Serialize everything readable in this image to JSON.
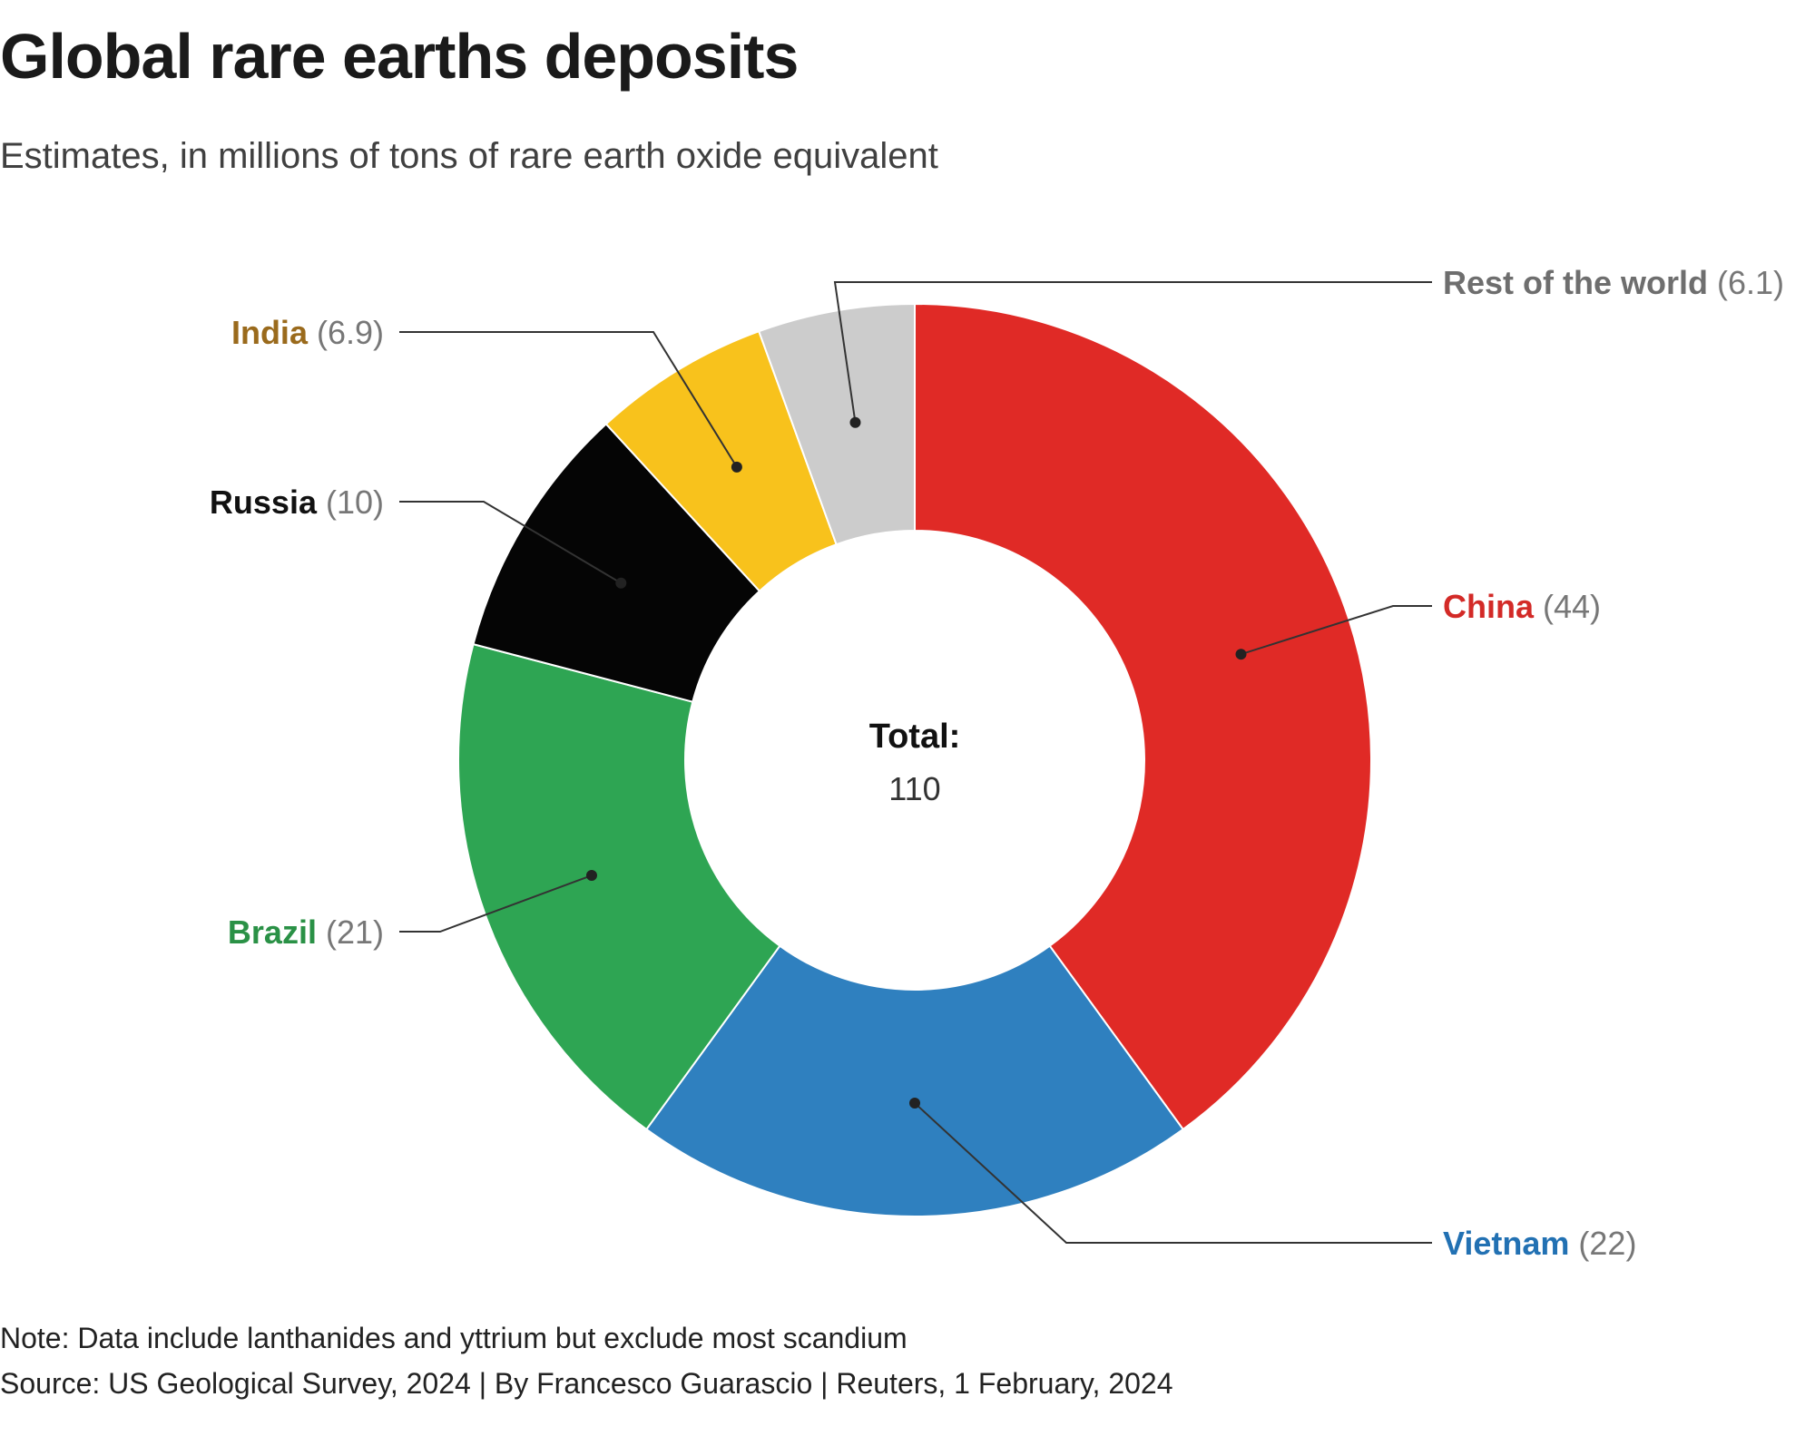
{
  "title": "Global rare earths deposits",
  "subtitle": "Estimates, in millions of tons of rare earth oxide equivalent",
  "total_label": "Total:",
  "total_value": "110",
  "note": "Note: Data include lanthanides and yttrium but exclude most scandium",
  "source": "Source: US Geological Survey, 2024 | By Francesco Guarascio | Reuters, 1 February, 2024",
  "chart_data": {
    "type": "pie",
    "donut": true,
    "title": "Global rare earths deposits",
    "subtitle": "Estimates, in millions of tons of rare earth oxide equivalent",
    "total": 110,
    "slices": [
      {
        "label": "China",
        "value": 44,
        "display": "(44)",
        "color": "#e02a26",
        "label_color": "#d32a27"
      },
      {
        "label": "Vietnam",
        "value": 22,
        "display": "(22)",
        "color": "#2f80bf",
        "label_color": "#2271b3"
      },
      {
        "label": "Brazil",
        "value": 21,
        "display": "(21)",
        "color": "#2ea553",
        "label_color": "#2a9146"
      },
      {
        "label": "Russia",
        "value": 10,
        "display": "(10)",
        "color": "#050505",
        "label_color": "#111111"
      },
      {
        "label": "India",
        "value": 6.9,
        "display": "(6.9)",
        "color": "#f8c21c",
        "label_color": "#9a6a1c"
      },
      {
        "label": "Rest of the world",
        "value": 6.1,
        "display": "(6.1)",
        "color": "#cccccc",
        "label_color": "#6e6e6e"
      }
    ]
  }
}
